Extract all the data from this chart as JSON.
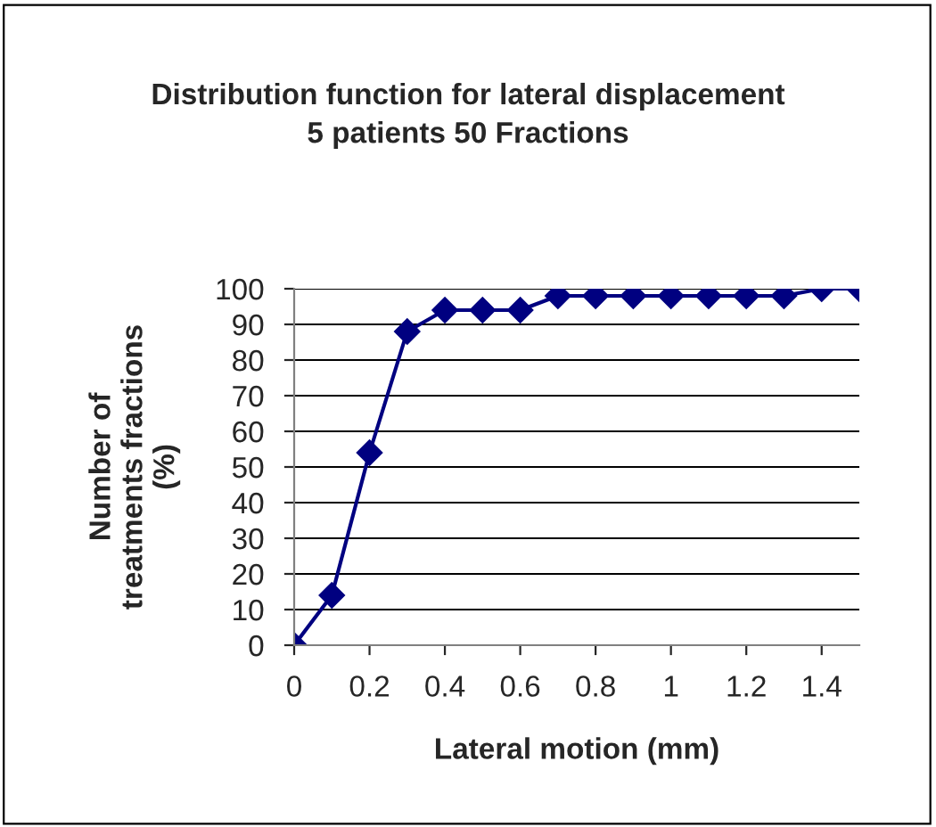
{
  "chart_data": {
    "type": "line",
    "title": "Distribution function for lateral displacement\n5 patients 50 Fractions",
    "xlabel": "Lateral motion (mm)",
    "ylabel": "Number of\ntreatments fractions\n(%)",
    "x": [
      0,
      0.1,
      0.2,
      0.3,
      0.4,
      0.5,
      0.6,
      0.7,
      0.8,
      0.9,
      1.0,
      1.1,
      1.2,
      1.3,
      1.4,
      1.5
    ],
    "series": [
      {
        "color": "#000080",
        "values": [
          0,
          14,
          54,
          88,
          94,
          94,
          94,
          98,
          98,
          98,
          98,
          98,
          98,
          98,
          100,
          100
        ]
      }
    ],
    "xlim": [
      0,
      1.5
    ],
    "xticks": [
      0,
      0.2,
      0.4,
      0.6,
      0.8,
      1,
      1.2,
      1.4
    ],
    "ylim": [
      0,
      100
    ],
    "yticks": [
      0,
      10,
      20,
      30,
      40,
      50,
      60,
      70,
      80,
      90,
      100
    ],
    "grid": "y",
    "marker": "diamond",
    "line_style": "solid",
    "legend": false
  }
}
